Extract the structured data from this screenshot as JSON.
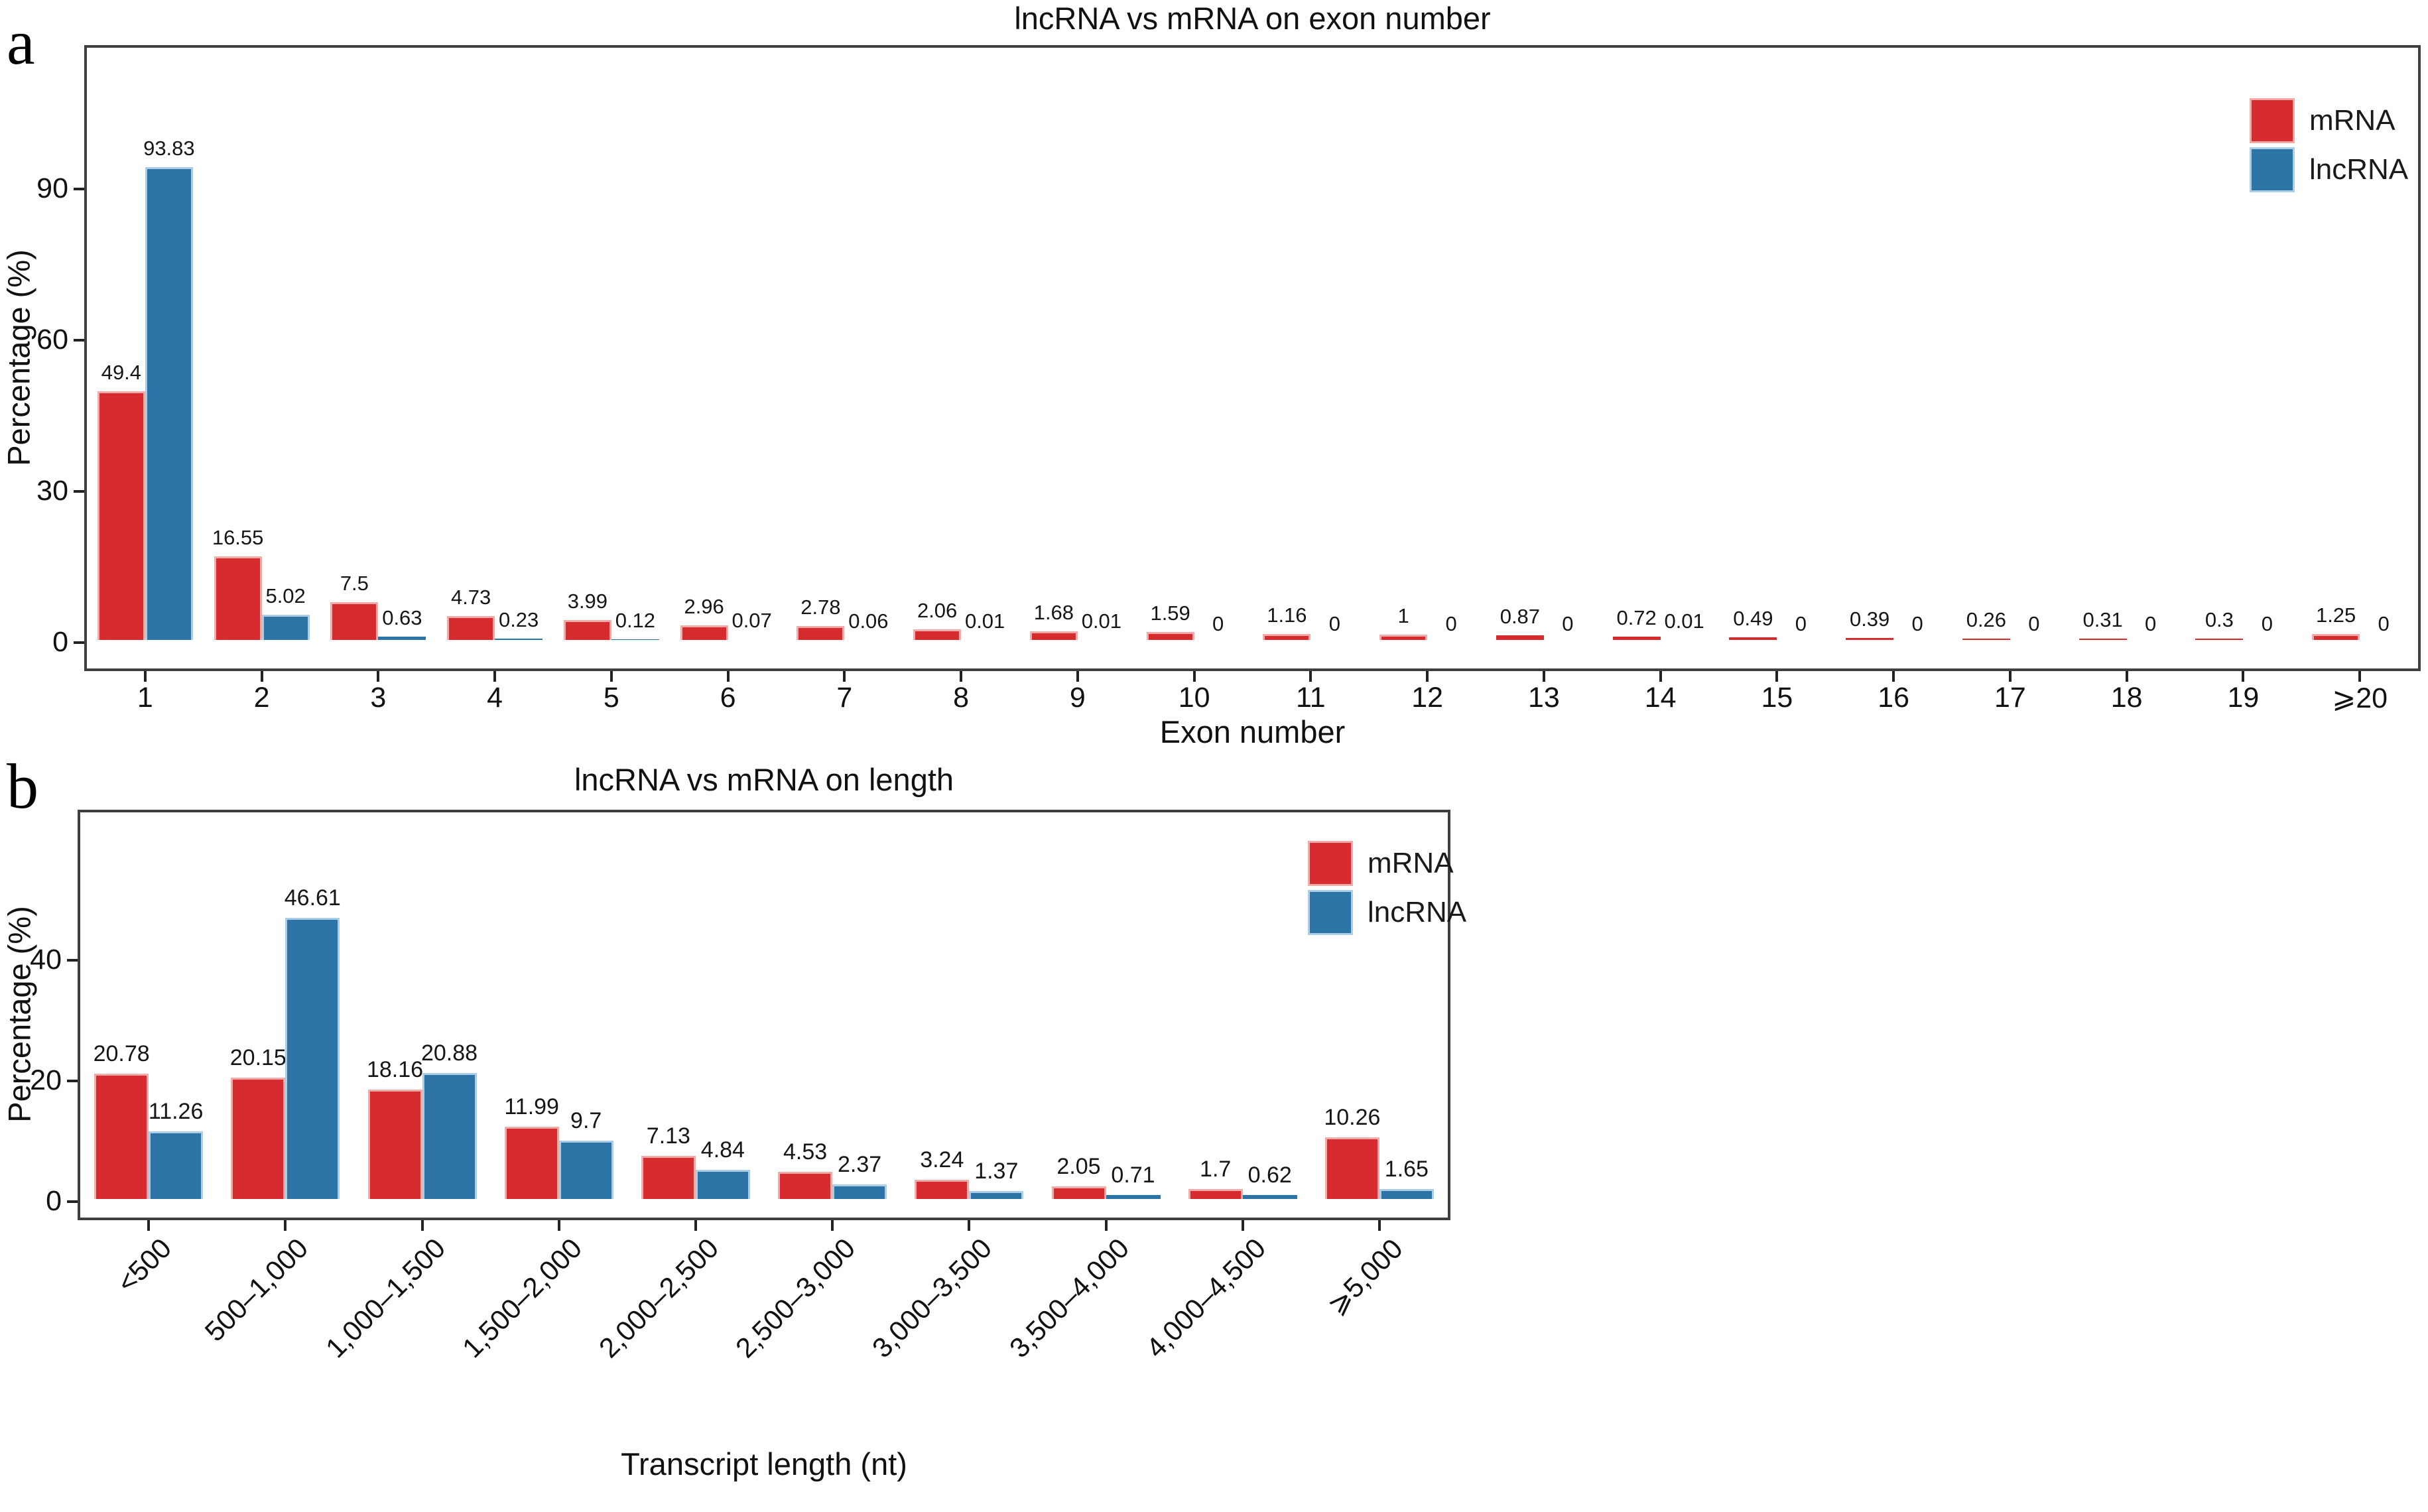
{
  "panels": [
    {
      "label": "a"
    },
    {
      "label": "b"
    }
  ],
  "colors": {
    "mrna_fill": "#d62b2f",
    "mrna_edge": "#f2aba6",
    "lncrna_fill": "#2d74a6",
    "lncrna_edge": "#abcee6",
    "axis": "#3f3f3f"
  },
  "chart_data": [
    {
      "type": "bar",
      "panel": "a",
      "title": "lncRNA vs mRNA on exon number",
      "xlabel": "Exon number",
      "ylabel": "Percentage (%)",
      "categories": [
        "1",
        "2",
        "3",
        "4",
        "5",
        "6",
        "7",
        "8",
        "9",
        "10",
        "11",
        "12",
        "13",
        "14",
        "15",
        "16",
        "17",
        "18",
        "19",
        "⩾20"
      ],
      "series": [
        {
          "name": "mRNA",
          "color": "#d62b2f",
          "values": [
            49.4,
            16.55,
            7.5,
            4.73,
            3.99,
            2.96,
            2.78,
            2.06,
            1.68,
            1.59,
            1.16,
            1,
            0.87,
            0.72,
            0.49,
            0.39,
            0.26,
            0.31,
            0.3,
            1.25
          ],
          "labels": [
            "49.4",
            "16.55",
            "7.5",
            "4.73",
            "3.99",
            "2.96",
            "2.78",
            "2.06",
            "1.68",
            "1.59",
            "1.16",
            "1",
            "0.87",
            "0.72",
            "0.49",
            "0.39",
            "0.26",
            "0.31",
            "0.3",
            "1.25"
          ]
        },
        {
          "name": "lncRNA",
          "color": "#2d74a6",
          "values": [
            93.83,
            5.02,
            0.63,
            0.23,
            0.12,
            0.07,
            0.06,
            0.01,
            0.01,
            0,
            0,
            0,
            0,
            0.01,
            0,
            0,
            0,
            0,
            0,
            0
          ],
          "labels": [
            "93.83",
            "5.02",
            "0.63",
            "0.23",
            "0.12",
            "0.07",
            "0.06",
            "0.01",
            "0.01",
            "0",
            "0",
            "0",
            "0",
            "0.01",
            "0",
            "0",
            "0",
            "0",
            "0",
            "0"
          ]
        }
      ],
      "yticks": [
        0,
        30,
        60,
        90
      ],
      "ylim": [
        0,
        118
      ],
      "grid": false,
      "legend_position": "top-right-inside"
    },
    {
      "type": "bar",
      "panel": "b",
      "title": "lncRNA vs mRNA on length",
      "xlabel": "Transcript length (nt)",
      "ylabel": "Percentage (%)",
      "categories": [
        "<500",
        "500–1,000",
        "1,000–1,500",
        "1,500–2,000",
        "2,000–2,500",
        "2,500–3,000",
        "3,000–3,500",
        "3,500–4,000",
        "4,000–4,500",
        "⩾5,000"
      ],
      "series": [
        {
          "name": "mRNA",
          "color": "#d62b2f",
          "values": [
            20.78,
            20.15,
            18.16,
            11.99,
            7.13,
            4.53,
            3.24,
            2.05,
            1.7,
            10.26
          ],
          "labels": [
            "20.78",
            "20.15",
            "18.16",
            "11.99",
            "7.13",
            "4.53",
            "3.24",
            "2.05",
            "1.7",
            "10.26"
          ]
        },
        {
          "name": "lncRNA",
          "color": "#2d74a6",
          "values": [
            11.26,
            46.61,
            20.88,
            9.7,
            4.84,
            2.37,
            1.37,
            0.71,
            0.62,
            1.65
          ],
          "labels": [
            "11.26",
            "46.61",
            "20.88",
            "9.7",
            "4.84",
            "2.37",
            "1.37",
            "0.71",
            "0.62",
            "1.65"
          ]
        }
      ],
      "yticks": [
        0,
        20,
        40
      ],
      "ylim": [
        0,
        65
      ],
      "grid": false,
      "legend_position": "top-right-inside"
    }
  ]
}
